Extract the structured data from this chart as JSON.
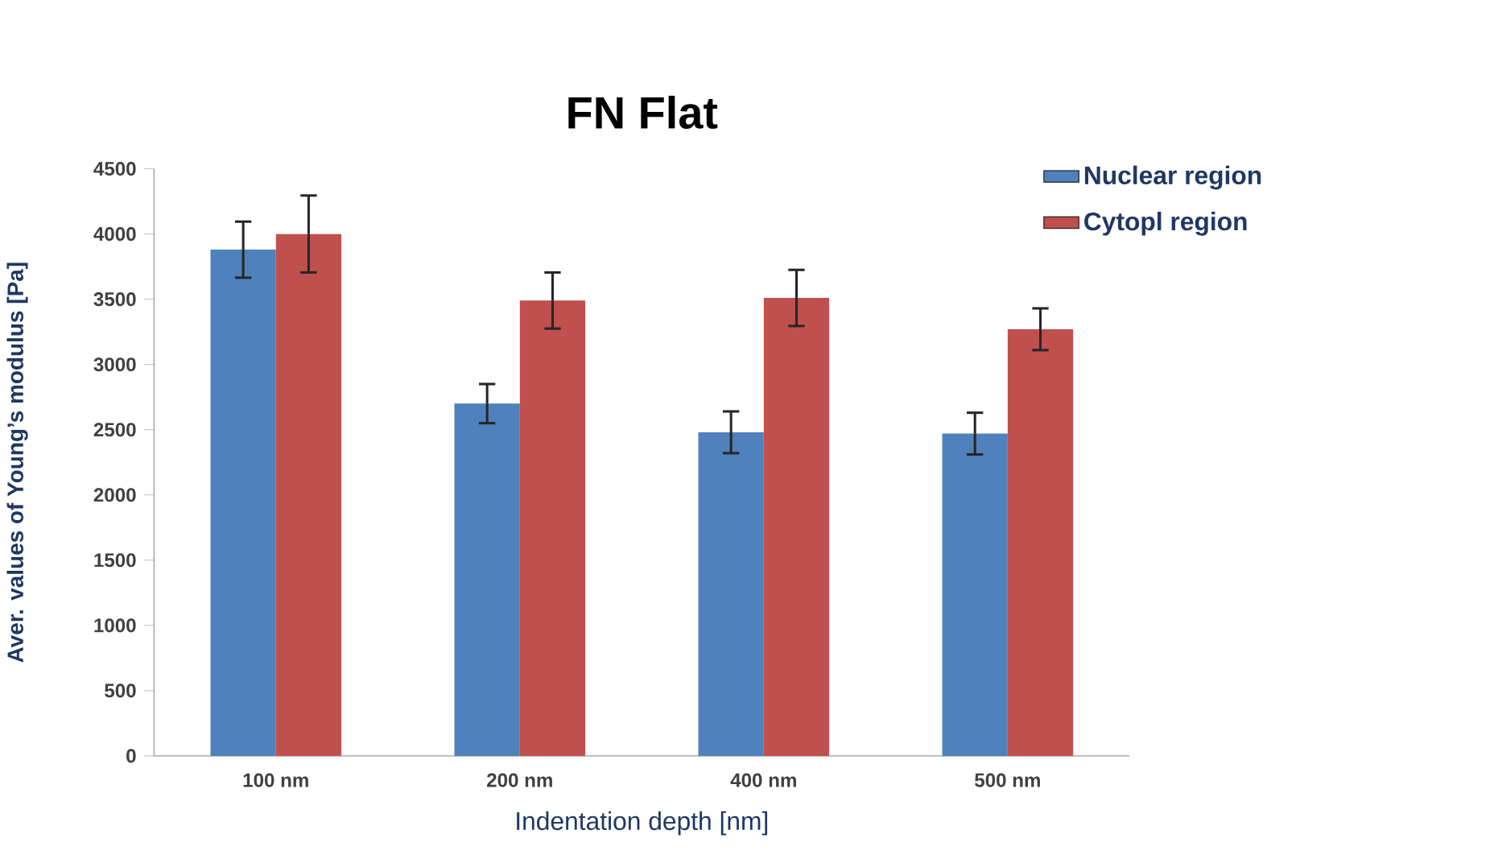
{
  "chart_data": {
    "type": "bar",
    "title": "FN Flat",
    "xlabel": "Indentation depth [nm]",
    "ylabel": "Aver. values of Young’s modulus [Pa]",
    "categories": [
      "100 nm",
      "200 nm",
      "400 nm",
      "500 nm"
    ],
    "series": [
      {
        "name": "Nuclear region",
        "color": "#4f81bd",
        "values": [
          3880,
          2700,
          2480,
          2470
        ],
        "errors": [
          215,
          150,
          160,
          160
        ]
      },
      {
        "name": "Cytopl region",
        "color": "#c0504d",
        "values": [
          4000,
          3490,
          3510,
          3270
        ],
        "errors": [
          295,
          215,
          215,
          160
        ]
      }
    ],
    "ylim": [
      0,
      4500
    ],
    "yticks": [
      0,
      500,
      1000,
      1500,
      2000,
      2500,
      3000,
      3500,
      4000,
      4500
    ],
    "grid": false,
    "legend": "top right"
  }
}
